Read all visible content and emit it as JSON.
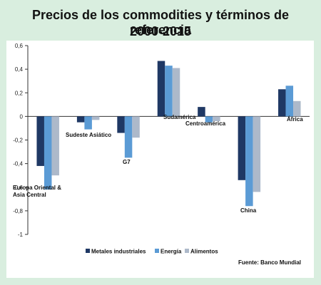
{
  "title_line1": "Precios de los commodities y términos de referencia",
  "title_line2": "2000-2015",
  "source": "Fuente: Banco Mundial",
  "colors": {
    "background": "#d9eedf",
    "plot_background": "#ffffff",
    "series": [
      "#1f3864",
      "#5b9bd5",
      "#adb9ca"
    ]
  },
  "chart_data": {
    "type": "bar",
    "categories": [
      "Europa Oriental & Asia Central",
      "Sudeste Asiático",
      "G7",
      "Sudamérica",
      "Centroamérica",
      "China",
      "África"
    ],
    "category_label_lines": [
      [
        "Europa Oriental &",
        "Asia Central"
      ],
      [
        "Sudeste Asiático"
      ],
      [
        "G7"
      ],
      [
        "Sudamérica"
      ],
      [
        "Centroamérica"
      ],
      [
        "China"
      ],
      [
        "África"
      ]
    ],
    "series": [
      {
        "name": "Metales industriales",
        "values": [
          -0.42,
          -0.05,
          -0.14,
          0.47,
          0.08,
          -0.54,
          0.23
        ]
      },
      {
        "name": "Energía",
        "values": [
          -0.62,
          -0.11,
          -0.35,
          0.43,
          -0.05,
          -0.76,
          0.26
        ]
      },
      {
        "name": "Alimentos",
        "values": [
          -0.5,
          -0.03,
          -0.18,
          0.41,
          -0.04,
          -0.64,
          0.13
        ]
      }
    ],
    "ylim": [
      -1,
      0.6
    ],
    "y_ticks": [
      "0,6",
      "0,4",
      "0,2",
      "0",
      "-0,2",
      "-0,4",
      "-0,6",
      "-0,8",
      "-1"
    ],
    "legend_position": "bottom",
    "grid": false
  }
}
